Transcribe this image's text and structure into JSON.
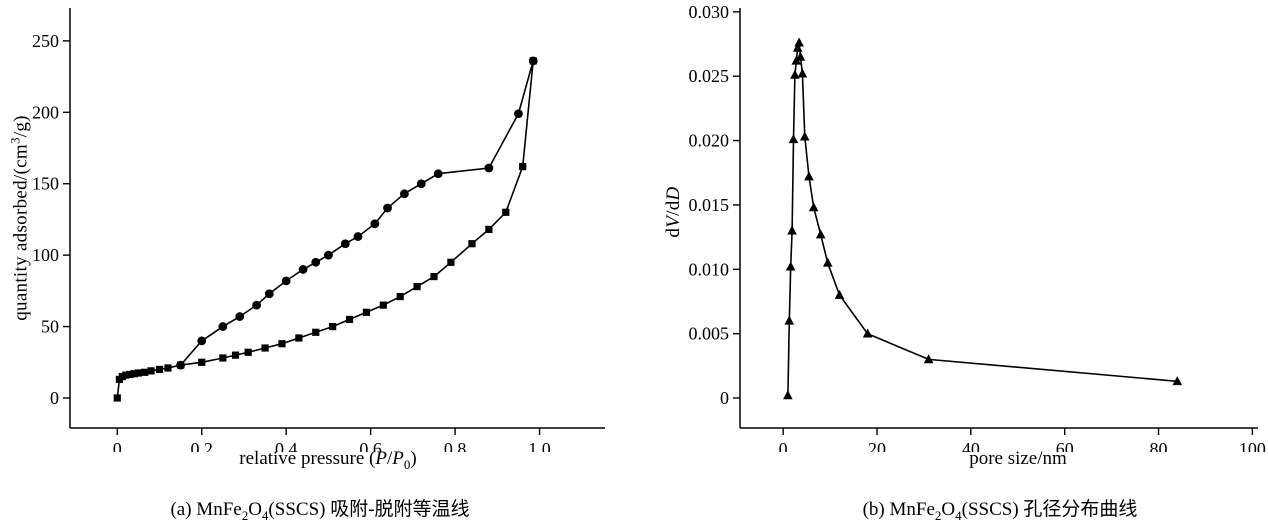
{
  "figure_a": {
    "ylabel": {
      "pre": "quantity adsorbed/(cm",
      "sup": "3",
      "post": "/g)"
    },
    "xlabel": {
      "pre": "relative pressure (",
      "p1": "P",
      "mid": "/",
      "p2": "P",
      "sub": "0",
      "post": ")"
    },
    "caption": {
      "c1": "(a) MnFe",
      "c2": "2",
      "c3": "O",
      "c4": "4",
      "c5": "(SSCS) 吸附-脱附等温线"
    }
  },
  "figure_b": {
    "ylabel": {
      "d1": "d",
      "v": "V",
      "d2": "/d",
      "dd": "D"
    },
    "xlabel": {
      "text": "pore size/nm"
    },
    "caption": {
      "c1": "(b) MnFe",
      "c2": "2",
      "c3": "O",
      "c4": "4",
      "c5": "(SSCS) 孔径分布曲线"
    }
  },
  "chart_data": [
    {
      "type": "line",
      "title": "",
      "xlabel": "relative pressure (P/P0)",
      "ylabel": "quantity adsorbed/(cm3/g)",
      "xlim": [
        -0.112,
        1.155
      ],
      "ylim": [
        -21,
        273
      ],
      "grid": false,
      "legend": "none",
      "xticks": {
        "values": [
          0,
          0.2,
          0.4,
          0.6,
          0.8,
          1.0
        ],
        "labels": [
          "0",
          "0.2",
          "0.4",
          "0.6",
          "0.8",
          "1.0"
        ]
      },
      "yticks": {
        "values": [
          0,
          50,
          100,
          150,
          200,
          250
        ],
        "labels": [
          "0",
          "50",
          "100",
          "150",
          "200",
          "250"
        ]
      },
      "series": [
        {
          "name": "adsorption-branch",
          "marker": "square",
          "points": [
            [
              0,
              0
            ],
            [
              0.005,
              13
            ],
            [
              0.012,
              15
            ],
            [
              0.02,
              16
            ],
            [
              0.03,
              16.5
            ],
            [
              0.04,
              17
            ],
            [
              0.05,
              17.5
            ],
            [
              0.065,
              18
            ],
            [
              0.08,
              19
            ],
            [
              0.1,
              20
            ],
            [
              0.12,
              21
            ],
            [
              0.15,
              23
            ],
            [
              0.2,
              25
            ],
            [
              0.25,
              28
            ],
            [
              0.28,
              30
            ],
            [
              0.31,
              32
            ],
            [
              0.35,
              35
            ],
            [
              0.39,
              38
            ],
            [
              0.43,
              42
            ],
            [
              0.47,
              46
            ],
            [
              0.51,
              50
            ],
            [
              0.55,
              55
            ],
            [
              0.59,
              60
            ],
            [
              0.63,
              65
            ],
            [
              0.67,
              71
            ],
            [
              0.71,
              78
            ],
            [
              0.75,
              85
            ],
            [
              0.79,
              95
            ],
            [
              0.84,
              108
            ],
            [
              0.88,
              118
            ],
            [
              0.92,
              130
            ],
            [
              0.96,
              162
            ],
            [
              0.985,
              236
            ]
          ]
        },
        {
          "name": "desorption-branch",
          "marker": "circle",
          "points": [
            [
              0.15,
              23
            ],
            [
              0.2,
              40
            ],
            [
              0.25,
              50
            ],
            [
              0.29,
              57
            ],
            [
              0.33,
              65
            ],
            [
              0.36,
              73
            ],
            [
              0.4,
              82
            ],
            [
              0.44,
              90
            ],
            [
              0.47,
              95
            ],
            [
              0.5,
              100
            ],
            [
              0.54,
              108
            ],
            [
              0.57,
              113
            ],
            [
              0.61,
              122
            ],
            [
              0.64,
              133
            ],
            [
              0.68,
              143
            ],
            [
              0.72,
              150
            ],
            [
              0.76,
              157
            ],
            [
              0.88,
              161
            ],
            [
              0.95,
              199
            ],
            [
              0.985,
              236
            ]
          ]
        }
      ]
    },
    {
      "type": "line",
      "title": "",
      "xlabel": "pore size/nm",
      "ylabel": "dV/dD",
      "xlim": [
        -9.2,
        101.2
      ],
      "ylim": [
        -0.00233,
        0.0303
      ],
      "grid": false,
      "legend": "none",
      "xticks": {
        "values": [
          0,
          20,
          40,
          60,
          80,
          100
        ],
        "labels": [
          "0",
          "20",
          "40",
          "60",
          "80",
          "100"
        ]
      },
      "yticks": {
        "values": [
          0,
          0.005,
          0.01,
          0.015,
          0.02,
          0.025,
          0.03
        ],
        "labels": [
          "0",
          "0.005",
          "0.010",
          "0.015",
          "0.020",
          "0.025",
          "0.030"
        ]
      },
      "series": [
        {
          "name": "pore-size-distribution",
          "marker": "triangle",
          "points": [
            [
              1.0,
              0.0002
            ],
            [
              1.3,
              0.006
            ],
            [
              1.6,
              0.0102
            ],
            [
              1.9,
              0.013
            ],
            [
              2.2,
              0.0201
            ],
            [
              2.5,
              0.0251
            ],
            [
              2.8,
              0.0262
            ],
            [
              3.1,
              0.0272
            ],
            [
              3.4,
              0.0276
            ],
            [
              3.7,
              0.0265
            ],
            [
              4.1,
              0.0252
            ],
            [
              4.6,
              0.0203
            ],
            [
              5.5,
              0.0172
            ],
            [
              6.5,
              0.0148
            ],
            [
              8.0,
              0.0127
            ],
            [
              9.5,
              0.0105
            ],
            [
              12,
              0.008
            ],
            [
              18,
              0.005
            ],
            [
              31,
              0.003
            ],
            [
              84,
              0.0013
            ]
          ]
        }
      ]
    }
  ]
}
